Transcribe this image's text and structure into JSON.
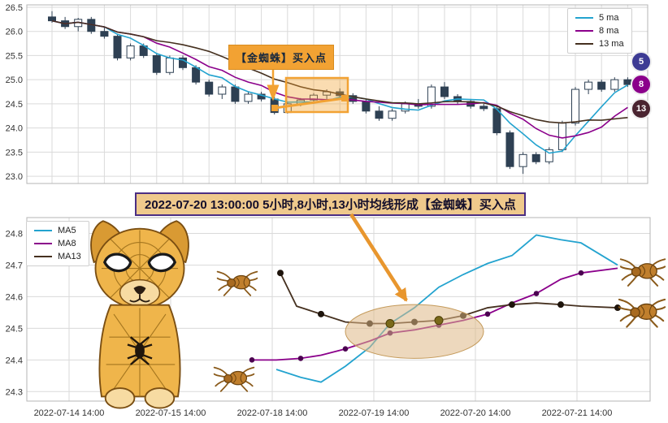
{
  "colors": {
    "ma5": "#23a3cf",
    "ma8": "#8B008B",
    "ma13": "#45301f",
    "candle_up": "#ffffff",
    "candle_down": "#2e4053",
    "grid": "#dadada",
    "plot_border": "#b5b5b5",
    "tick_text": "#333333",
    "highlight_orange": "#f2a233",
    "arrow_orange": "#e8962e",
    "ellipse_fill": "#deb887",
    "ellipse_stroke": "#c49a5a",
    "annotation_bg": "#efc98c",
    "annotation_border": "#4b2e83",
    "badge5": "#3d3b94",
    "badge8": "#8B008B",
    "badge13": "#4a2430",
    "ma8_marker": "#4b0050",
    "ma13_marker": "#1e140c",
    "highlight_dot": "#7a6a1a"
  },
  "annotations": {
    "buy_label": "【金蜘蛛】买入点",
    "signal_text": "2022-07-20 13:00:00 5小时,8小时,13小时均线形成【金蜘蛛】买入点"
  },
  "chart_data": [
    {
      "type": "candlestick",
      "title": "",
      "xlabel": "",
      "ylabel": "",
      "ylim": [
        22.85,
        26.55
      ],
      "yticks": [
        23.0,
        23.5,
        24.0,
        24.5,
        25.0,
        25.5,
        26.0,
        26.5
      ],
      "grid": true,
      "legend_position": "top-right",
      "legend": [
        "5 ma",
        "8 ma",
        "13 ma"
      ],
      "ma_windows": [
        5,
        8,
        13
      ],
      "badges": [
        "5",
        "8",
        "13"
      ],
      "candles_ohlc": [
        [
          26.3,
          26.42,
          26.18,
          26.22
        ],
        [
          26.22,
          26.3,
          26.05,
          26.1
        ],
        [
          26.1,
          26.28,
          26.0,
          26.25
        ],
        [
          26.25,
          26.3,
          25.95,
          26.0
        ],
        [
          26.0,
          26.1,
          25.85,
          25.9
        ],
        [
          25.9,
          25.95,
          25.4,
          25.45
        ],
        [
          25.45,
          25.75,
          25.4,
          25.7
        ],
        [
          25.7,
          25.75,
          25.45,
          25.5
        ],
        [
          25.5,
          25.55,
          25.1,
          25.15
        ],
        [
          25.15,
          25.5,
          25.1,
          25.45
        ],
        [
          25.45,
          25.5,
          25.2,
          25.25
        ],
        [
          25.25,
          25.3,
          24.9,
          24.95
        ],
        [
          24.95,
          25.0,
          24.65,
          24.7
        ],
        [
          24.7,
          24.9,
          24.6,
          24.85
        ],
        [
          24.85,
          24.9,
          24.5,
          24.55
        ],
        [
          24.55,
          24.75,
          24.5,
          24.7
        ],
        [
          24.7,
          24.75,
          24.55,
          24.6
        ],
        [
          24.6,
          24.65,
          24.28,
          24.32
        ],
        [
          24.32,
          24.55,
          24.3,
          24.5
        ],
        [
          24.5,
          24.62,
          24.45,
          24.58
        ],
        [
          24.58,
          24.72,
          24.5,
          24.68
        ],
        [
          24.68,
          24.8,
          24.6,
          24.75
        ],
        [
          24.75,
          24.82,
          24.62,
          24.67
        ],
        [
          24.67,
          24.72,
          24.5,
          24.55
        ],
        [
          24.55,
          24.6,
          24.3,
          24.35
        ],
        [
          24.35,
          24.45,
          24.15,
          24.2
        ],
        [
          24.2,
          24.4,
          24.15,
          24.35
        ],
        [
          24.35,
          24.55,
          24.3,
          24.5
        ],
        [
          24.5,
          24.6,
          24.4,
          24.45
        ],
        [
          24.45,
          24.9,
          24.4,
          24.85
        ],
        [
          24.85,
          24.95,
          24.6,
          24.65
        ],
        [
          24.65,
          24.7,
          24.5,
          24.55
        ],
        [
          24.55,
          24.6,
          24.4,
          24.45
        ],
        [
          24.45,
          24.5,
          24.35,
          24.4
        ],
        [
          24.4,
          24.45,
          23.85,
          23.9
        ],
        [
          23.9,
          23.95,
          23.15,
          23.2
        ],
        [
          23.2,
          23.5,
          23.05,
          23.45
        ],
        [
          23.45,
          23.5,
          23.25,
          23.3
        ],
        [
          23.3,
          23.6,
          23.25,
          23.55
        ],
        [
          23.55,
          24.15,
          23.5,
          24.1
        ],
        [
          24.1,
          24.85,
          24.05,
          24.8
        ],
        [
          24.8,
          25.0,
          24.7,
          24.95
        ],
        [
          24.95,
          25.0,
          24.75,
          24.8
        ],
        [
          24.8,
          25.05,
          24.75,
          25.0
        ],
        [
          25.0,
          25.05,
          24.85,
          24.9
        ]
      ]
    },
    {
      "type": "line",
      "title": "",
      "xlabel": "",
      "ylabel": "",
      "ylim": [
        24.27,
        24.85
      ],
      "yticks": [
        24.3,
        24.4,
        24.5,
        24.6,
        24.7,
        24.8
      ],
      "grid": true,
      "legend_position": "top-left",
      "x_tick_labels": [
        "2022-07-14 14:00",
        "2022-07-15 14:00",
        "2022-07-18 14:00",
        "2022-07-19 14:00",
        "2022-07-20 14:00",
        "2022-07-21 14:00"
      ],
      "series": [
        {
          "name": "MA5",
          "color_key": "ma5",
          "marker_every": 0,
          "marker_color": "",
          "x": [
            2.04,
            2.28,
            2.48,
            2.72,
            2.96,
            3.16,
            3.4,
            3.64,
            3.88,
            4.12,
            4.36,
            4.6,
            4.84,
            5.04,
            5.4
          ],
          "y": [
            24.37,
            24.345,
            24.33,
            24.38,
            24.44,
            24.515,
            24.565,
            24.63,
            24.67,
            24.705,
            24.73,
            24.795,
            24.78,
            24.77,
            24.7
          ]
        },
        {
          "name": "MA8",
          "color_key": "ma8",
          "marker_every": 2,
          "marker_color": "ma8_marker",
          "x": [
            1.8,
            2.04,
            2.28,
            2.48,
            2.72,
            2.96,
            3.16,
            3.4,
            3.64,
            3.88,
            4.12,
            4.36,
            4.6,
            4.84,
            5.04,
            5.4
          ],
          "y": [
            24.4,
            24.4,
            24.405,
            24.415,
            24.435,
            24.46,
            24.485,
            24.495,
            24.51,
            24.525,
            24.545,
            24.58,
            24.61,
            24.655,
            24.675,
            24.69
          ]
        },
        {
          "name": "MA13",
          "color_key": "ma13",
          "marker_every": 2,
          "marker_color": "ma13_marker",
          "x": [
            2.08,
            2.24,
            2.48,
            2.72,
            2.96,
            3.16,
            3.4,
            3.64,
            3.88,
            4.12,
            4.36,
            4.6,
            4.84,
            5.04,
            5.4
          ],
          "y": [
            24.675,
            24.57,
            24.545,
            24.52,
            24.515,
            24.515,
            24.52,
            24.525,
            24.54,
            24.565,
            24.575,
            24.58,
            24.575,
            24.57,
            24.565
          ]
        }
      ],
      "highlight_points": [
        {
          "x": 3.16,
          "y": 24.515
        },
        {
          "x": 3.64,
          "y": 24.525
        }
      ],
      "ellipse": {
        "cx": 3.4,
        "cy": 24.49,
        "rx": 0.68,
        "ry": 0.085
      }
    }
  ]
}
